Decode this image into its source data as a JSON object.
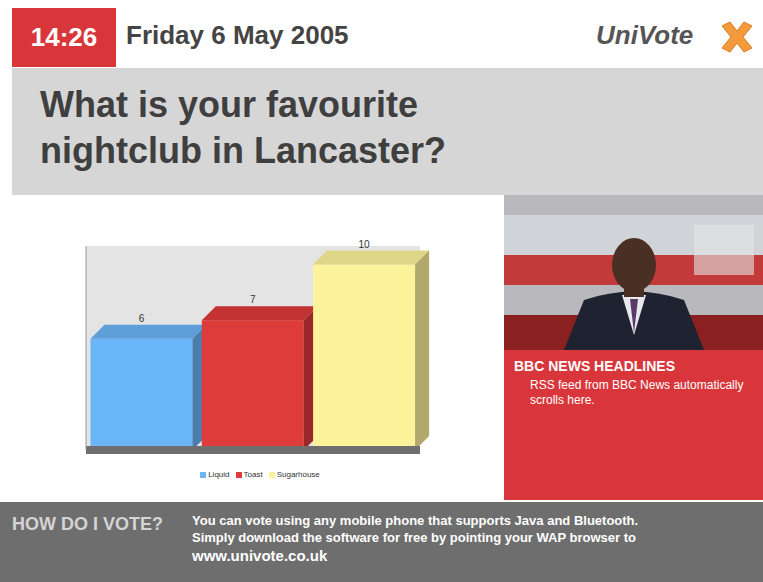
{
  "header": {
    "time": "14:26",
    "date": "Friday 6 May 2005",
    "brand": "UniVote"
  },
  "question": [
    "What is your favourite",
    "nightclub in Lancaster?"
  ],
  "chart_data": {
    "type": "bar",
    "categories": [
      "Liquid",
      "Toast",
      "Sugarhouse"
    ],
    "values": [
      6,
      7,
      10
    ],
    "colors": [
      "#6bb6f7",
      "#de3b3b",
      "#fdf39a"
    ],
    "ylim": [
      0,
      11
    ],
    "data_labels": true,
    "tick_labels": false,
    "legend": "bottom",
    "grid": false
  },
  "news": {
    "title": "BBC NEWS HEADLINES",
    "text": "RSS feed from BBC News automatically scrolls here."
  },
  "footer": {
    "heading": "HOW DO I VOTE?",
    "lines": [
      "You can vote using any mobile phone that supports Java and Bluetooth.",
      "Simply download the software for free by pointing your WAP browser to"
    ],
    "url": "www.univote.co.uk"
  }
}
